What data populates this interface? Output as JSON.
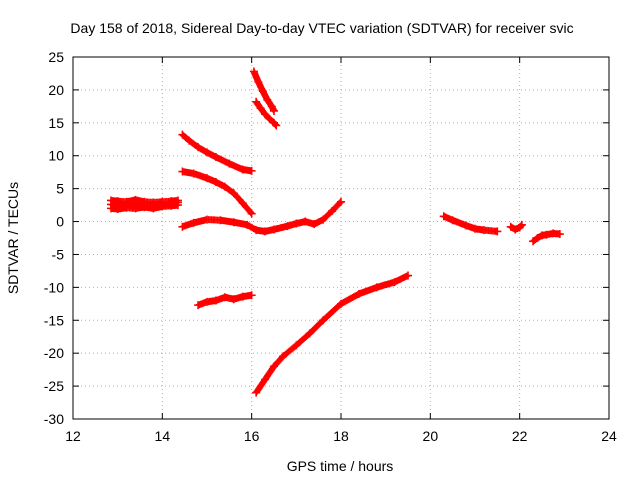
{
  "chart_data": {
    "type": "scatter",
    "title": "Day 158 of 2018, Sidereal Day-to-day VTEC variation (SDTVAR) for receiver svic",
    "xlabel": "GPS time / hours",
    "ylabel": "SDTVAR / TECUs",
    "xlim": [
      12,
      24
    ],
    "ylim": [
      -30,
      25
    ],
    "xticks": [
      12,
      14,
      16,
      18,
      20,
      22,
      24
    ],
    "yticks": [
      -30,
      -25,
      -20,
      -15,
      -10,
      -5,
      0,
      5,
      10,
      15,
      20,
      25
    ],
    "grid": true,
    "legend": "none",
    "marker": "plus",
    "color": "#ff0000",
    "series": [
      {
        "x": [
          12.85,
          13.0,
          13.2,
          13.4,
          13.6,
          13.8,
          14.0,
          14.2,
          14.35
        ],
        "y": [
          2.6,
          2.4,
          2.7,
          2.5,
          2.3,
          2.6,
          2.5,
          2.7,
          2.9
        ]
      },
      {
        "x": [
          12.85,
          13.0,
          13.2,
          13.4,
          13.6,
          13.8,
          14.0,
          14.2,
          14.35
        ],
        "y": [
          2.0,
          1.9,
          2.1,
          2.0,
          2.2,
          2.0,
          2.3,
          2.4,
          2.5
        ]
      },
      {
        "x": [
          12.85,
          13.0,
          13.2,
          13.4,
          13.6,
          13.8,
          14.0,
          14.2,
          14.35
        ],
        "y": [
          3.2,
          3.1,
          3.0,
          3.3,
          3.0,
          2.9,
          3.0,
          3.1,
          3.2
        ]
      },
      {
        "x": [
          14.45,
          14.6,
          14.8,
          15.0,
          15.2,
          15.5,
          15.8,
          16.0
        ],
        "y": [
          13.2,
          12.3,
          11.3,
          10.5,
          9.8,
          8.8,
          7.9,
          7.7
        ]
      },
      {
        "x": [
          14.45,
          14.7,
          15.0,
          15.2,
          15.4,
          15.6,
          15.8,
          16.0
        ],
        "y": [
          7.6,
          7.3,
          6.6,
          6.0,
          5.3,
          4.3,
          2.8,
          1.2
        ]
      },
      {
        "x": [
          14.45,
          14.7,
          15.0,
          15.3,
          15.6,
          15.9,
          16.1,
          16.3,
          16.5,
          16.8,
          17.0,
          17.2,
          17.4,
          17.6,
          17.8,
          18.0
        ],
        "y": [
          -0.8,
          -0.2,
          0.3,
          0.2,
          -0.1,
          -0.5,
          -1.3,
          -1.5,
          -1.2,
          -0.7,
          -0.3,
          0.0,
          -0.4,
          0.3,
          1.6,
          3.0
        ]
      },
      {
        "x": [
          16.05,
          16.15,
          16.25,
          16.35,
          16.45,
          16.5
        ],
        "y": [
          22.8,
          21.2,
          19.8,
          18.5,
          17.5,
          16.8
        ]
      },
      {
        "x": [
          16.1,
          16.2,
          16.3,
          16.4,
          16.5,
          16.55
        ],
        "y": [
          18.2,
          17.2,
          16.3,
          15.6,
          15.0,
          14.6
        ]
      },
      {
        "x": [
          14.8,
          15.0,
          15.2,
          15.4,
          15.6,
          15.8,
          16.0
        ],
        "y": [
          -12.7,
          -12.2,
          -12.0,
          -11.5,
          -11.8,
          -11.4,
          -11.2
        ]
      },
      {
        "x": [
          16.1,
          16.3,
          16.5,
          16.7,
          17.0,
          17.3,
          17.6,
          18.0,
          18.4,
          18.8,
          19.2,
          19.5
        ],
        "y": [
          -26.0,
          -24.0,
          -22.0,
          -20.5,
          -18.8,
          -17.0,
          -15.0,
          -12.5,
          -11.0,
          -10.0,
          -9.2,
          -8.2
        ]
      },
      {
        "x": [
          20.3,
          20.5,
          20.8,
          21.0,
          21.2,
          21.5
        ],
        "y": [
          0.8,
          0.2,
          -0.6,
          -1.1,
          -1.3,
          -1.5
        ]
      },
      {
        "x": [
          21.8,
          21.9,
          22.0,
          22.05
        ],
        "y": [
          -0.8,
          -1.2,
          -0.9,
          -0.5
        ]
      },
      {
        "x": [
          22.3,
          22.4,
          22.5,
          22.6,
          22.75,
          22.9
        ],
        "y": [
          -3.0,
          -2.5,
          -2.1,
          -2.0,
          -1.8,
          -1.9
        ]
      }
    ]
  }
}
